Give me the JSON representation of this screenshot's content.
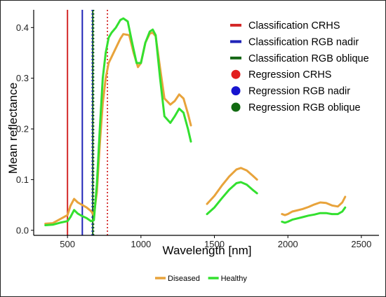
{
  "chart_data": {
    "type": "line",
    "xlabel": "Wavelength [nm]",
    "ylabel": "Mean reflectance",
    "xlim": [
      270,
      2620
    ],
    "ylim": [
      -0.01,
      0.435
    ],
    "x_ticks": [
      500,
      1000,
      1500,
      2000,
      2500
    ],
    "y_ticks": [
      0.0,
      0.1,
      0.2,
      0.3,
      0.4
    ],
    "x_tick_labels": [
      "500",
      "1000",
      "1500",
      "2000",
      "2500"
    ],
    "y_tick_labels": [
      "0.0",
      "0.1",
      "0.2",
      "0.3",
      "0.4"
    ],
    "grid": false,
    "series": [
      {
        "name": "Diseased",
        "color": "#E8A33B",
        "segments": [
          [
            [
              350,
              0.013
            ],
            [
              400,
              0.014
            ],
            [
              450,
              0.022
            ],
            [
              500,
              0.03
            ],
            [
              520,
              0.048
            ],
            [
              545,
              0.062
            ],
            [
              570,
              0.055
            ],
            [
              600,
              0.05
            ],
            [
              630,
              0.045
            ],
            [
              660,
              0.038
            ],
            [
              680,
              0.03
            ],
            [
              700,
              0.075
            ],
            [
              720,
              0.17
            ],
            [
              740,
              0.25
            ],
            [
              760,
              0.3
            ],
            [
              780,
              0.33
            ],
            [
              800,
              0.342
            ],
            [
              830,
              0.36
            ],
            [
              860,
              0.378
            ],
            [
              880,
              0.387
            ],
            [
              920,
              0.385
            ],
            [
              950,
              0.35
            ],
            [
              980,
              0.322
            ],
            [
              1000,
              0.33
            ],
            [
              1030,
              0.37
            ],
            [
              1060,
              0.388
            ],
            [
              1080,
              0.39
            ],
            [
              1100,
              0.383
            ],
            [
              1130,
              0.32
            ],
            [
              1160,
              0.26
            ],
            [
              1200,
              0.248
            ],
            [
              1230,
              0.255
            ],
            [
              1260,
              0.268
            ],
            [
              1290,
              0.26
            ],
            [
              1320,
              0.23
            ],
            [
              1340,
              0.207
            ]
          ],
          [
            [
              1450,
              0.052
            ],
            [
              1500,
              0.068
            ],
            [
              1550,
              0.088
            ],
            [
              1600,
              0.106
            ],
            [
              1650,
              0.12
            ],
            [
              1680,
              0.123
            ],
            [
              1720,
              0.118
            ],
            [
              1760,
              0.108
            ],
            [
              1790,
              0.1
            ]
          ],
          [
            [
              1960,
              0.032
            ],
            [
              1980,
              0.03
            ],
            [
              2000,
              0.032
            ],
            [
              2030,
              0.037
            ],
            [
              2060,
              0.039
            ],
            [
              2100,
              0.042
            ],
            [
              2140,
              0.046
            ],
            [
              2180,
              0.051
            ],
            [
              2220,
              0.055
            ],
            [
              2260,
              0.054
            ],
            [
              2300,
              0.049
            ],
            [
              2340,
              0.047
            ],
            [
              2370,
              0.055
            ],
            [
              2390,
              0.066
            ]
          ]
        ]
      },
      {
        "name": "Healthy",
        "color": "#33E02F",
        "segments": [
          [
            [
              350,
              0.01
            ],
            [
              400,
              0.011
            ],
            [
              450,
              0.015
            ],
            [
              500,
              0.018
            ],
            [
              520,
              0.026
            ],
            [
              545,
              0.04
            ],
            [
              570,
              0.033
            ],
            [
              600,
              0.028
            ],
            [
              630,
              0.024
            ],
            [
              660,
              0.018
            ],
            [
              680,
              0.02
            ],
            [
              700,
              0.09
            ],
            [
              720,
              0.2
            ],
            [
              740,
              0.3
            ],
            [
              760,
              0.35
            ],
            [
              780,
              0.38
            ],
            [
              800,
              0.39
            ],
            [
              830,
              0.4
            ],
            [
              860,
              0.415
            ],
            [
              880,
              0.418
            ],
            [
              910,
              0.412
            ],
            [
              940,
              0.37
            ],
            [
              970,
              0.33
            ],
            [
              1000,
              0.33
            ],
            [
              1030,
              0.37
            ],
            [
              1060,
              0.392
            ],
            [
              1080,
              0.396
            ],
            [
              1100,
              0.385
            ],
            [
              1130,
              0.3
            ],
            [
              1160,
              0.225
            ],
            [
              1200,
              0.212
            ],
            [
              1230,
              0.225
            ],
            [
              1260,
              0.24
            ],
            [
              1290,
              0.232
            ],
            [
              1320,
              0.2
            ],
            [
              1340,
              0.175
            ]
          ],
          [
            [
              1450,
              0.032
            ],
            [
              1500,
              0.045
            ],
            [
              1550,
              0.063
            ],
            [
              1600,
              0.08
            ],
            [
              1650,
              0.093
            ],
            [
              1680,
              0.095
            ],
            [
              1720,
              0.09
            ],
            [
              1760,
              0.08
            ],
            [
              1790,
              0.073
            ]
          ],
          [
            [
              1960,
              0.017
            ],
            [
              1980,
              0.015
            ],
            [
              2000,
              0.017
            ],
            [
              2030,
              0.021
            ],
            [
              2060,
              0.023
            ],
            [
              2100,
              0.026
            ],
            [
              2140,
              0.029
            ],
            [
              2180,
              0.031
            ],
            [
              2220,
              0.034
            ],
            [
              2260,
              0.034
            ],
            [
              2300,
              0.032
            ],
            [
              2340,
              0.032
            ],
            [
              2370,
              0.037
            ],
            [
              2390,
              0.045
            ]
          ]
        ]
      }
    ],
    "markers": [
      {
        "name": "Classification CRHS",
        "type": "solid",
        "x": 500,
        "color": "#D42A2A"
      },
      {
        "name": "Classification RGB nadir",
        "type": "solid",
        "x": 601,
        "color": "#1F24B8"
      },
      {
        "name": "Classification RGB oblique",
        "type": "solid",
        "x": 672,
        "color": "#146614"
      },
      {
        "name": "Regression CRHS",
        "type": "dotted",
        "x": 772,
        "color": "#D42A2A"
      },
      {
        "name": "Regression RGB nadir",
        "type": "dotted",
        "x": 668,
        "color": "#1F24B8"
      },
      {
        "name": "Regression RGB oblique",
        "type": "dotted",
        "x": 678,
        "color": "#146614"
      }
    ],
    "inner_legend": [
      {
        "label": "Classification CRHS",
        "kind": "line",
        "color": "#D42A2A"
      },
      {
        "label": "Classification RGB nadir",
        "kind": "line",
        "color": "#1F24B8"
      },
      {
        "label": "Classification RGB oblique",
        "kind": "line",
        "color": "#146614"
      },
      {
        "label": "Regression CRHS",
        "kind": "dot",
        "color": "#E21F1F"
      },
      {
        "label": "Regression RGB nadir",
        "kind": "dot",
        "color": "#1714CF"
      },
      {
        "label": "Regression RGB oblique",
        "kind": "dot",
        "color": "#116A11"
      }
    ],
    "bottom_legend": [
      {
        "label": "Diseased",
        "color": "#E8A33B"
      },
      {
        "label": "Healthy",
        "color": "#33E02F"
      }
    ],
    "inner_legend_position": "top-right",
    "bottom_legend_position": "bottom-center"
  }
}
